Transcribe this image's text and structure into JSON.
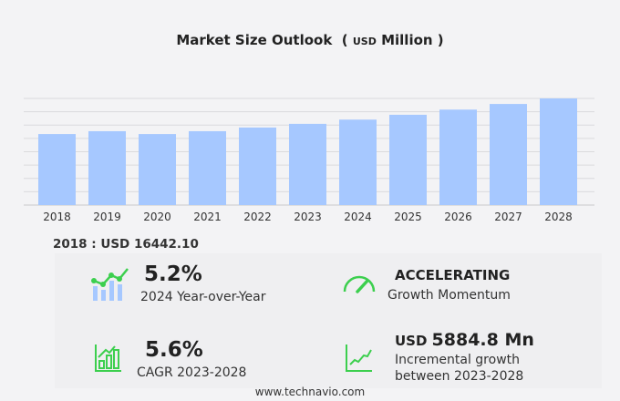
{
  "chart_data": {
    "type": "bar",
    "title": "Market Size Outlook",
    "unit_prefix": "USD",
    "unit": "Million",
    "categories": [
      "2018",
      "2019",
      "2020",
      "2021",
      "2022",
      "2023",
      "2024",
      "2025",
      "2026",
      "2027",
      "2028"
    ],
    "values": [
      16442.1,
      17100,
      16440,
      17100,
      17950,
      18800,
      19780,
      20900,
      22100,
      23400,
      24685
    ],
    "ylim": [
      0,
      24685
    ],
    "grid": true,
    "color": "#a6c8ff"
  },
  "base_label": "2018 : USD  16442.10",
  "stats": {
    "yoy_value": "5.2%",
    "yoy_label": "2024 Year-over-Year",
    "momentum_value": "ACCELERATING",
    "momentum_label": "Growth Momentum",
    "cagr_value": "5.6%",
    "cagr_label": "CAGR 2023-2028",
    "inc_prefix": "USD",
    "inc_value": "5884.8 Mn",
    "inc_label1": "Incremental growth",
    "inc_label2": "between 2023-2028"
  },
  "icon_color": "#3ccf4e",
  "footer": "www.technavio.com"
}
